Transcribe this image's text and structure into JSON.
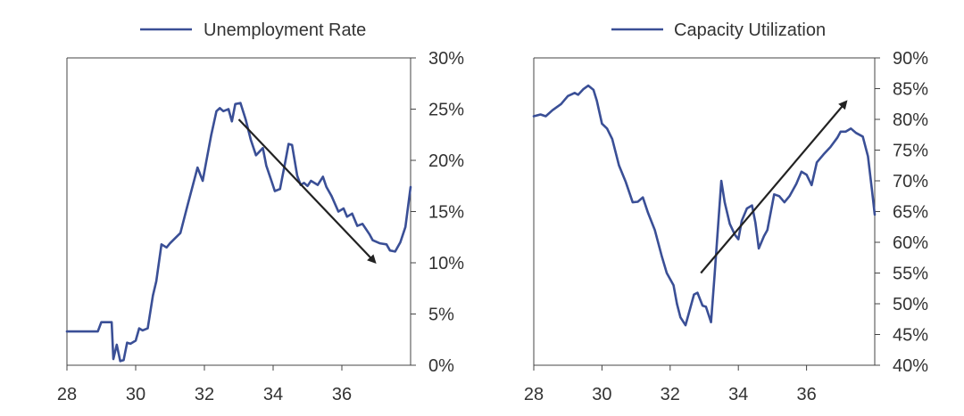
{
  "colors": {
    "series": "#3a4f96",
    "arrow": "#222222",
    "axis": "#444444",
    "text": "#333333"
  },
  "chart_data": [
    {
      "type": "line",
      "title": "",
      "xlabel": "",
      "ylabel": "",
      "xlim": [
        28,
        38
      ],
      "ylim": [
        0,
        30
      ],
      "x_ticks": [
        28,
        30,
        32,
        34,
        36
      ],
      "x_tick_labels": [
        "28",
        "30",
        "32",
        "34",
        "36"
      ],
      "y_ticks": [
        0,
        5,
        10,
        15,
        20,
        25,
        30
      ],
      "y_tick_labels": [
        "0%",
        "5%",
        "10%",
        "15%",
        "20%",
        "25%",
        "30%"
      ],
      "y_axis_side": "right",
      "grid": false,
      "legend": {
        "position": "top",
        "entries": [
          "Unemployment Rate"
        ]
      },
      "series": [
        {
          "name": "Unemployment Rate",
          "x": [
            28.0,
            28.9,
            29.0,
            29.3,
            29.35,
            29.45,
            29.55,
            29.65,
            29.75,
            29.85,
            30.0,
            30.1,
            30.2,
            30.35,
            30.5,
            30.6,
            30.75,
            30.9,
            31.0,
            31.3,
            31.5,
            31.8,
            31.95,
            32.05,
            32.2,
            32.35,
            32.45,
            32.55,
            32.7,
            32.8,
            32.9,
            33.05,
            33.2,
            33.35,
            33.5,
            33.7,
            33.8,
            33.95,
            34.05,
            34.2,
            34.35,
            34.45,
            34.55,
            34.7,
            34.8,
            34.9,
            35.0,
            35.1,
            35.3,
            35.45,
            35.55,
            35.7,
            35.9,
            36.05,
            36.15,
            36.3,
            36.45,
            36.6,
            36.8,
            36.9,
            37.1,
            37.3,
            37.4,
            37.55,
            37.7,
            37.85,
            38.0
          ],
          "values": [
            3.3,
            3.3,
            4.2,
            4.2,
            0.6,
            2.0,
            0.4,
            0.5,
            2.2,
            2.1,
            2.4,
            3.6,
            3.4,
            3.6,
            6.8,
            8.2,
            11.8,
            11.5,
            11.9,
            12.9,
            15.5,
            19.3,
            18.0,
            19.8,
            22.5,
            24.8,
            25.1,
            24.8,
            25.0,
            23.8,
            25.5,
            25.6,
            24.0,
            22.0,
            20.5,
            21.2,
            19.5,
            18.0,
            17.0,
            17.2,
            19.8,
            21.6,
            21.5,
            18.5,
            17.6,
            17.8,
            17.5,
            18.0,
            17.6,
            18.4,
            17.4,
            16.5,
            15.0,
            15.3,
            14.5,
            14.8,
            13.6,
            13.8,
            12.8,
            12.2,
            11.9,
            11.8,
            11.2,
            11.1,
            12.0,
            13.5,
            17.4
          ]
        }
      ],
      "annotations": [
        {
          "type": "arrow",
          "from": [
            33.0,
            24.0
          ],
          "to": [
            36.95,
            10.1
          ]
        }
      ]
    },
    {
      "type": "line",
      "title": "",
      "xlabel": "",
      "ylabel": "",
      "xlim": [
        28,
        38
      ],
      "ylim": [
        40,
        90
      ],
      "x_ticks": [
        28,
        30,
        32,
        34,
        36
      ],
      "x_tick_labels": [
        "28",
        "30",
        "32",
        "34",
        "36"
      ],
      "y_ticks": [
        40,
        45,
        50,
        55,
        60,
        65,
        70,
        75,
        80,
        85,
        90
      ],
      "y_tick_labels": [
        "40%",
        "45%",
        "50%",
        "55%",
        "60%",
        "65%",
        "70%",
        "75%",
        "80%",
        "85%",
        "90%"
      ],
      "y_axis_side": "right",
      "grid": false,
      "legend": {
        "position": "top",
        "entries": [
          "Capacity Utilization"
        ]
      },
      "series": [
        {
          "name": "Capacity Utilization",
          "x": [
            28.0,
            28.2,
            28.35,
            28.55,
            28.8,
            29.0,
            29.2,
            29.3,
            29.45,
            29.6,
            29.75,
            29.85,
            30.0,
            30.15,
            30.3,
            30.5,
            30.7,
            30.9,
            31.05,
            31.2,
            31.35,
            31.55,
            31.75,
            31.9,
            32.1,
            32.2,
            32.3,
            32.45,
            32.55,
            32.7,
            32.8,
            32.95,
            33.05,
            33.2,
            33.3,
            33.5,
            33.6,
            33.75,
            33.9,
            34.0,
            34.1,
            34.25,
            34.4,
            34.5,
            34.6,
            34.75,
            34.85,
            35.05,
            35.2,
            35.35,
            35.5,
            35.7,
            35.85,
            36.0,
            36.15,
            36.3,
            36.5,
            36.7,
            36.9,
            37.0,
            37.15,
            37.3,
            37.45,
            37.65,
            37.8,
            37.92,
            38.0
          ],
          "values": [
            80.5,
            80.8,
            80.5,
            81.5,
            82.5,
            83.8,
            84.3,
            84.0,
            84.9,
            85.5,
            84.8,
            83.0,
            79.3,
            78.5,
            76.8,
            72.5,
            69.8,
            66.5,
            66.6,
            67.3,
            64.8,
            62.0,
            57.8,
            55.0,
            53.0,
            50.0,
            47.8,
            46.5,
            48.5,
            51.5,
            51.8,
            49.7,
            49.5,
            47.0,
            54.5,
            70.0,
            66.5,
            63.0,
            61.2,
            60.5,
            63.5,
            65.5,
            66.0,
            63.2,
            59.0,
            61.0,
            62.0,
            67.8,
            67.5,
            66.5,
            67.5,
            69.5,
            71.5,
            71.0,
            69.3,
            73.0,
            74.3,
            75.5,
            77.0,
            78.0,
            78.0,
            78.5,
            77.8,
            77.2,
            74.0,
            68.5,
            64.5
          ]
        }
      ],
      "annotations": [
        {
          "type": "arrow",
          "from": [
            32.9,
            55.0
          ],
          "to": [
            37.15,
            82.8
          ]
        }
      ]
    }
  ]
}
